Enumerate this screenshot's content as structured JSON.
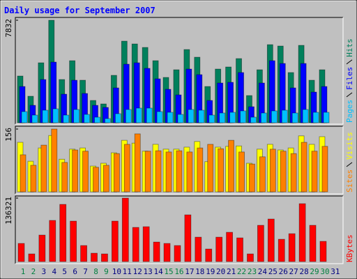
{
  "chart_data": [
    {
      "type": "bar",
      "title": "Daily usage for September 2007",
      "ylim": [
        0,
        7832
      ],
      "yticks": [
        7832
      ],
      "series": [
        {
          "name": "Hits",
          "color": "#00805c",
          "values": [
            3570,
            2025,
            4582,
            7832,
            3303,
            4742,
            3250,
            1705,
            1439,
            3623,
            6234,
            6021,
            5754,
            4742,
            3463,
            4049,
            5594,
            5008,
            2770,
            4102,
            4262,
            4902,
            2078,
            4049,
            5967,
            5861,
            3836,
            5914,
            3250,
            4049,
            null
          ]
        },
        {
          "name": "Files",
          "color": "#0000ff",
          "values": [
            2770,
            1332,
            3303,
            4635,
            2184,
            3250,
            2238,
            1332,
            1172,
            2664,
            4475,
            4582,
            4156,
            3357,
            2557,
            2131,
            4102,
            3676,
            1705,
            3037,
            3090,
            3836,
            1225,
            3037,
            4742,
            4529,
            2664,
            4529,
            2344,
            2770,
            null
          ]
        },
        {
          "name": "Pages",
          "color": "#00c0ff",
          "values": [
            852,
            586,
            959,
            1066,
            586,
            1012,
            639,
            426,
            320,
            693,
            1012,
            1119,
            1119,
            852,
            799,
            639,
            1012,
            959,
            586,
            746,
            799,
            906,
            426,
            746,
            906,
            959,
            746,
            1012,
            799,
            799,
            null
          ]
        }
      ]
    },
    {
      "type": "bar",
      "ylim": [
        0,
        156
      ],
      "yticks": [
        156
      ],
      "series": [
        {
          "name": "Visits",
          "color": "#ffff00",
          "values": [
            123,
            76,
            109,
            140,
            81,
            106,
            109,
            64,
            71,
            97,
            128,
            121,
            101,
            118,
            106,
            106,
            111,
            125,
            75,
            111,
            113,
            114,
            71,
            106,
            118,
            104,
            109,
            139,
            118,
            137,
            null
          ]
        },
        {
          "name": "Sites",
          "color": "#ff8000",
          "values": [
            92,
            66,
            116,
            156,
            73,
            104,
            101,
            61,
            66,
            95,
            118,
            144,
            101,
            102,
            99,
            102,
            99,
            109,
            118,
            107,
            128,
            99,
            69,
            87,
            106,
            101,
            95,
            123,
            101,
            113,
            null
          ]
        }
      ]
    },
    {
      "type": "bar",
      "ylim": [
        0,
        136321
      ],
      "yticks": [
        136321
      ],
      "series": [
        {
          "name": "KBytes",
          "color": "#ff0000",
          "values": [
            38950,
            16478,
            56925,
            88384,
            122838,
            86886,
            34455,
            17976,
            16478,
            86886,
            136321,
            73404,
            74902,
            41945,
            38950,
            34455,
            100369,
            52431,
            26964,
            52431,
            62918,
            50933,
            16478,
            77897,
            91380,
            47937,
            59920,
            124336,
            77897,
            43443,
            null
          ]
        }
      ],
      "categories": [
        "1",
        "2",
        "3",
        "4",
        "5",
        "6",
        "7",
        "8",
        "9",
        "10",
        "11",
        "12",
        "13",
        "14",
        "15",
        "16",
        "17",
        "18",
        "19",
        "20",
        "21",
        "22",
        "23",
        "24",
        "25",
        "26",
        "27",
        "28",
        "29",
        "30",
        "31"
      ],
      "weekend_indices": [
        0,
        1,
        7,
        8,
        14,
        15,
        21,
        22,
        28,
        29
      ],
      "weekend_color": "#008040"
    }
  ]
}
